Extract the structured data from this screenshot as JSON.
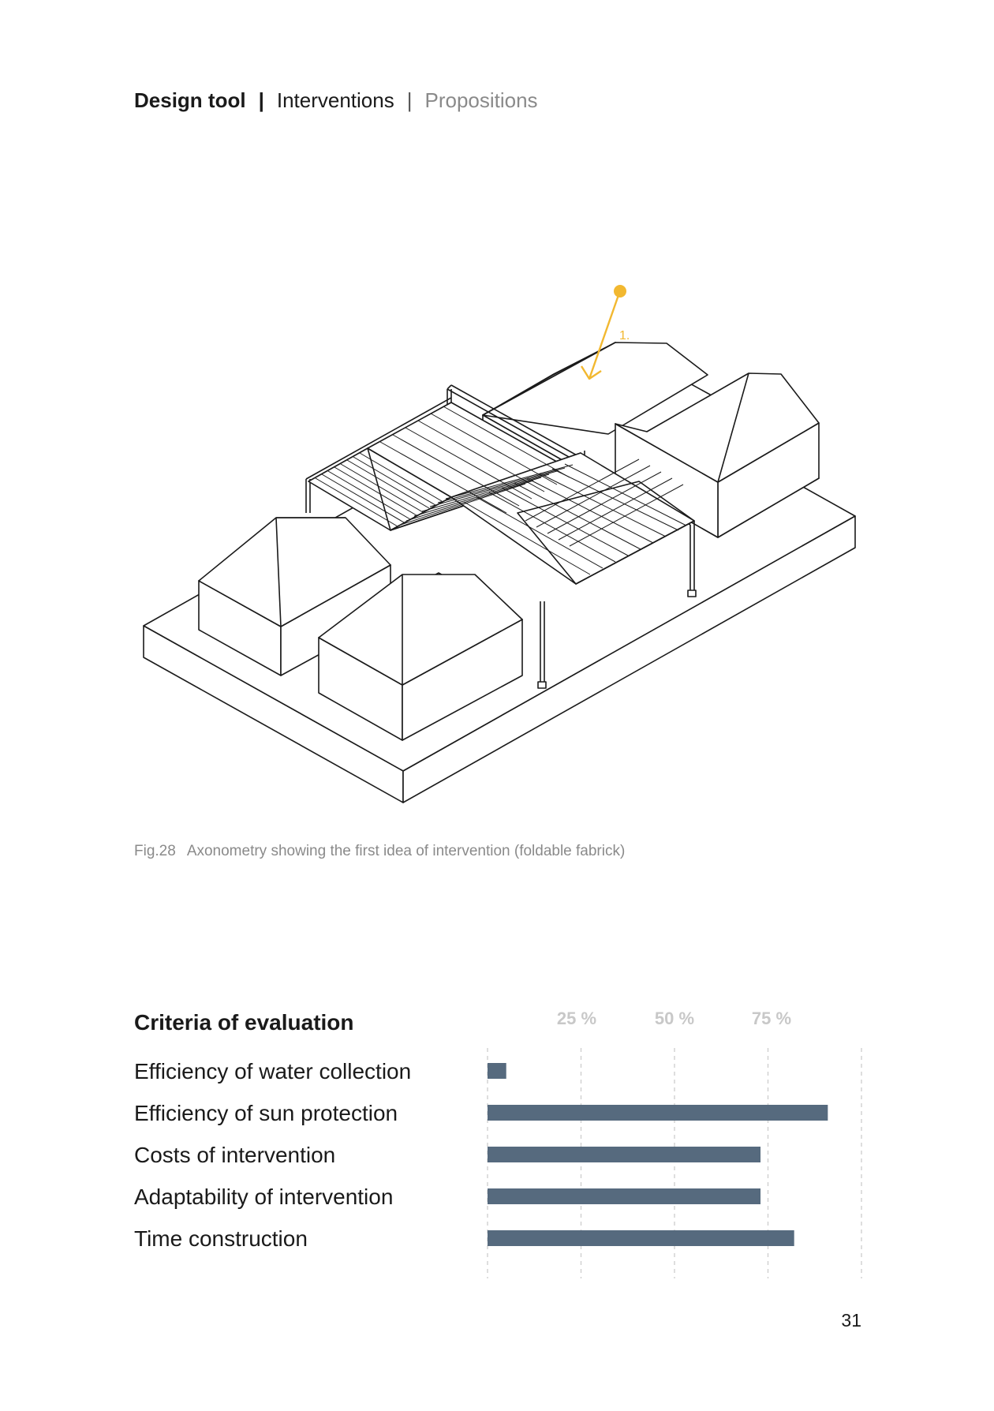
{
  "header": {
    "section": "Design tool",
    "separator_1": "|",
    "subsection": "Interventions",
    "separator_2": "|",
    "subsubsection": "Propositions"
  },
  "figure": {
    "annotation_label": "1.",
    "sun_color": "#f2b830",
    "caption_number": "Fig.28",
    "caption_text": "Axonometry showing the first idea of intervention (foldable fabrick)"
  },
  "criteria": {
    "title": "Criteria of evaluation",
    "items": [
      "Efficiency of water collection",
      "Efficiency of sun protection",
      "Costs of intervention",
      "Adaptability of intervention",
      "Time construction"
    ]
  },
  "chart_data": {
    "type": "bar",
    "orientation": "horizontal",
    "categories": [
      "Efficiency of water collection",
      "Efficiency of sun protection",
      "Costs of intervention",
      "Adaptability of intervention",
      "Time construction"
    ],
    "values": [
      5,
      91,
      73,
      73,
      82
    ],
    "xlim": [
      0,
      100
    ],
    "tick_labels": [
      "25 %",
      "50 %",
      "75 %"
    ],
    "grid": "dashed vertical at 0, 25, 50, 75, 100",
    "bar_color": "#566a7e",
    "grid_color": "#cccccc"
  },
  "page": {
    "number": "31"
  }
}
